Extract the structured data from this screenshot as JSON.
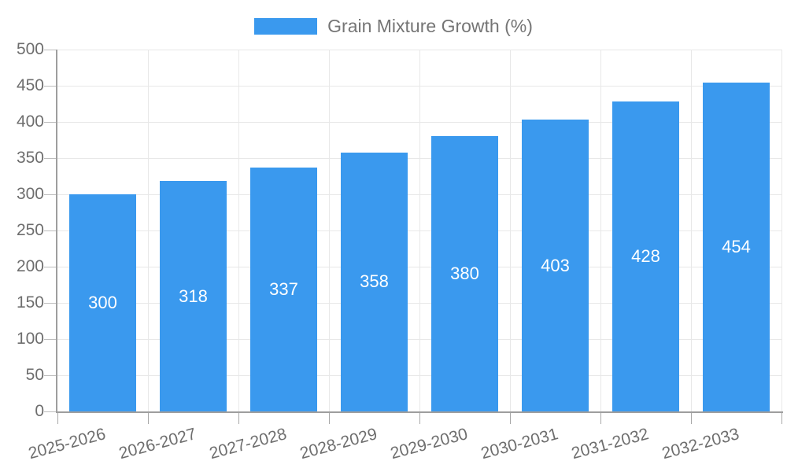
{
  "legend": {
    "label": "Grain Mixture Growth (%)"
  },
  "colors": {
    "bar": "#3a99ee",
    "grid": "#e8e8e8",
    "axis": "#9e9e9e",
    "tick": "#b0b0b0",
    "axis_label_text": "#6e6e6e",
    "legend_text": "#757575",
    "bar_label_text": "#ffffff"
  },
  "chart_data": {
    "type": "bar",
    "title": "Grain Mixture Growth (%)",
    "series_name": "Grain Mixture Growth (%)",
    "categories": [
      "2025-2026",
      "2026-2027",
      "2027-2028",
      "2028-2029",
      "2029-2030",
      "2030-2031",
      "2031-2032",
      "2032-2033"
    ],
    "values": [
      300,
      318,
      337,
      358,
      380,
      403,
      428,
      454
    ],
    "bar_labels": [
      "300",
      "318",
      "337",
      "358",
      "380",
      "403",
      "428",
      "454"
    ],
    "xlabel": "",
    "ylabel": "",
    "ylim": [
      0,
      500
    ],
    "ytick_step": 50,
    "yticks": [
      0,
      50,
      100,
      150,
      200,
      250,
      300,
      350,
      400,
      450,
      500
    ],
    "grid": true,
    "legend_position": "top-center",
    "value_labels": "inside-center",
    "x_label_rotation_deg": -15
  }
}
